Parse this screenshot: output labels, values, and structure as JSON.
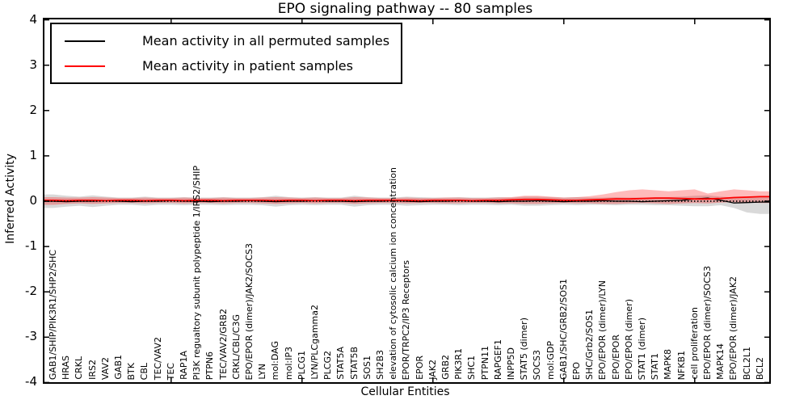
{
  "chart_data": {
    "type": "line",
    "title": "EPO signaling pathway -- 80 samples",
    "xlabel": "Cellular Entities",
    "ylabel": "Inferred Activity",
    "ylim": [
      -4,
      4
    ],
    "ytick_labels": [
      "4",
      "3",
      "2",
      "1",
      "0",
      "-1",
      "-2",
      "-3",
      "-4"
    ],
    "grid": false,
    "legend_position": "upper left",
    "zero_line": {
      "style": "dotted",
      "color": "#000000",
      "y": 0
    },
    "categories": [
      "GAB1/SHIP/PIK3R1/SHP2/SHC",
      "HRAS",
      "CRKL",
      "IRS2",
      "VAV2",
      "GAB1",
      "BTK",
      "CBL",
      "TEC/VAV2",
      "TEC",
      "RAP1A",
      "PI3K regualtory subunit polypeptide 1/IRS2/SHIP",
      "PTPN6",
      "TEC/VAV2/GRB2",
      "CRKL/CBL/C3G",
      "EPO/EPOR (dimer)/JAK2/SOCS3",
      "LYN",
      "mol:DAG",
      "mol:IP3",
      "PLCG1",
      "LYN/PLCgamma2",
      "PLCG2",
      "STAT5A",
      "STAT5B",
      "SOS1",
      "SH2B3",
      "elevation of cytosolic calcium ion concentration",
      "EPOR/TRPC2/IP3 Receptors",
      "EPOR",
      "JAK2",
      "GRB2",
      "PIK3R1",
      "SHC1",
      "PTPN11",
      "RAPGEF1",
      "INPP5D",
      "STAT5 (dimer)",
      "SOCS3",
      "mol:GDP",
      "GAB1/SHC/GRB2/SOS1",
      "EPO",
      "SHC/Grb2/SOS1",
      "EPO/EPOR (dimer)/LYN",
      "EPO/EPOR",
      "EPO/EPOR (dimer)",
      "STAT1 (dimer)",
      "STAT1",
      "MAPK8",
      "NFKB1",
      "cell proliferation",
      "EPO/EPOR (dimer)/SOCS3",
      "MAPK14",
      "EPO/EPOR (dimer)/JAK2",
      "BCL2L1",
      "BCL2"
    ],
    "series": [
      {
        "name": "Mean activity in all permuted samples",
        "color": "#000000",
        "band_color": "rgba(0,0,0,0.15)",
        "values": [
          0.0,
          -0.01,
          0.0,
          0.0,
          0.01,
          0.0,
          -0.01,
          0.0,
          0.0,
          0.01,
          0.0,
          0.0,
          -0.01,
          0.0,
          0.0,
          0.01,
          0.0,
          -0.01,
          0.0,
          0.0,
          0.01,
          0.0,
          0.0,
          -0.01,
          0.0,
          0.0,
          0.01,
          0.0,
          -0.01,
          0.0,
          0.0,
          0.01,
          0.0,
          0.0,
          -0.01,
          0.0,
          0.0,
          0.01,
          0.0,
          -0.01,
          0.0,
          0.0,
          0.01,
          0.0,
          0.0,
          -0.01,
          0.0,
          0.01,
          0.02,
          0.05,
          0.07,
          0.02,
          -0.04,
          -0.03,
          -0.02
        ],
        "band_upper": [
          0.15,
          0.12,
          0.1,
          0.13,
          0.1,
          0.08,
          0.08,
          0.1,
          0.08,
          0.08,
          0.09,
          0.08,
          0.08,
          0.09,
          0.08,
          0.08,
          0.09,
          0.12,
          0.09,
          0.08,
          0.09,
          0.08,
          0.08,
          0.12,
          0.09,
          0.08,
          0.08,
          0.1,
          0.09,
          0.08,
          0.08,
          0.09,
          0.08,
          0.08,
          0.09,
          0.08,
          0.1,
          0.1,
          0.09,
          0.08,
          0.09,
          0.08,
          0.08,
          0.09,
          0.08,
          0.08,
          0.09,
          0.09,
          0.1,
          0.12,
          0.13,
          0.1,
          0.08,
          0.09,
          0.1
        ],
        "band_lower": [
          -0.15,
          -0.12,
          -0.1,
          -0.13,
          -0.1,
          -0.08,
          -0.08,
          -0.1,
          -0.08,
          -0.08,
          -0.09,
          -0.08,
          -0.08,
          -0.09,
          -0.08,
          -0.08,
          -0.09,
          -0.12,
          -0.09,
          -0.08,
          -0.09,
          -0.08,
          -0.08,
          -0.12,
          -0.09,
          -0.08,
          -0.08,
          -0.1,
          -0.09,
          -0.08,
          -0.08,
          -0.09,
          -0.08,
          -0.08,
          -0.09,
          -0.08,
          -0.1,
          -0.1,
          -0.09,
          -0.08,
          -0.09,
          -0.08,
          -0.08,
          -0.09,
          -0.08,
          -0.08,
          -0.09,
          -0.09,
          -0.1,
          -0.11,
          -0.11,
          -0.09,
          -0.15,
          -0.25,
          -0.28
        ]
      },
      {
        "name": "Mean activity in patient samples",
        "color": "#ff0000",
        "band_color": "rgba(255,0,0,0.27)",
        "values": [
          0.02,
          0.01,
          0.02,
          0.02,
          0.01,
          0.02,
          0.02,
          0.01,
          0.02,
          0.02,
          0.01,
          0.02,
          0.02,
          0.01,
          0.02,
          0.02,
          0.02,
          0.01,
          0.02,
          0.02,
          0.01,
          0.02,
          0.02,
          0.01,
          0.02,
          0.02,
          0.02,
          0.02,
          0.01,
          0.02,
          0.02,
          0.02,
          0.01,
          0.02,
          0.02,
          0.03,
          0.04,
          0.04,
          0.03,
          0.02,
          0.02,
          0.03,
          0.04,
          0.05,
          0.05,
          0.06,
          0.07,
          0.07,
          0.06,
          0.05,
          0.05,
          0.06,
          0.08,
          0.09,
          0.1
        ],
        "band_upper": [
          0.09,
          0.08,
          0.08,
          0.09,
          0.08,
          0.07,
          0.07,
          0.08,
          0.07,
          0.07,
          0.08,
          0.07,
          0.07,
          0.08,
          0.07,
          0.07,
          0.08,
          0.09,
          0.08,
          0.07,
          0.08,
          0.07,
          0.07,
          0.09,
          0.08,
          0.07,
          0.07,
          0.08,
          0.07,
          0.07,
          0.08,
          0.08,
          0.07,
          0.07,
          0.08,
          0.09,
          0.12,
          0.12,
          0.1,
          0.08,
          0.09,
          0.11,
          0.15,
          0.2,
          0.24,
          0.26,
          0.24,
          0.22,
          0.24,
          0.26,
          0.17,
          0.22,
          0.26,
          0.24,
          0.22
        ],
        "band_lower": [
          -0.08,
          -0.06,
          -0.05,
          -0.06,
          -0.05,
          -0.04,
          -0.04,
          -0.05,
          -0.04,
          -0.04,
          -0.05,
          -0.04,
          -0.04,
          -0.05,
          -0.04,
          -0.04,
          -0.05,
          -0.06,
          -0.05,
          -0.04,
          -0.05,
          -0.04,
          -0.04,
          -0.06,
          -0.05,
          -0.04,
          -0.04,
          -0.05,
          -0.04,
          -0.04,
          -0.05,
          -0.05,
          -0.04,
          -0.04,
          -0.05,
          -0.05,
          -0.06,
          -0.06,
          -0.05,
          -0.04,
          -0.05,
          -0.05,
          -0.06,
          -0.06,
          -0.05,
          -0.04,
          -0.05,
          -0.06,
          -0.05,
          -0.04,
          -0.05,
          -0.03,
          -0.02,
          -0.03,
          -0.04
        ]
      }
    ]
  }
}
